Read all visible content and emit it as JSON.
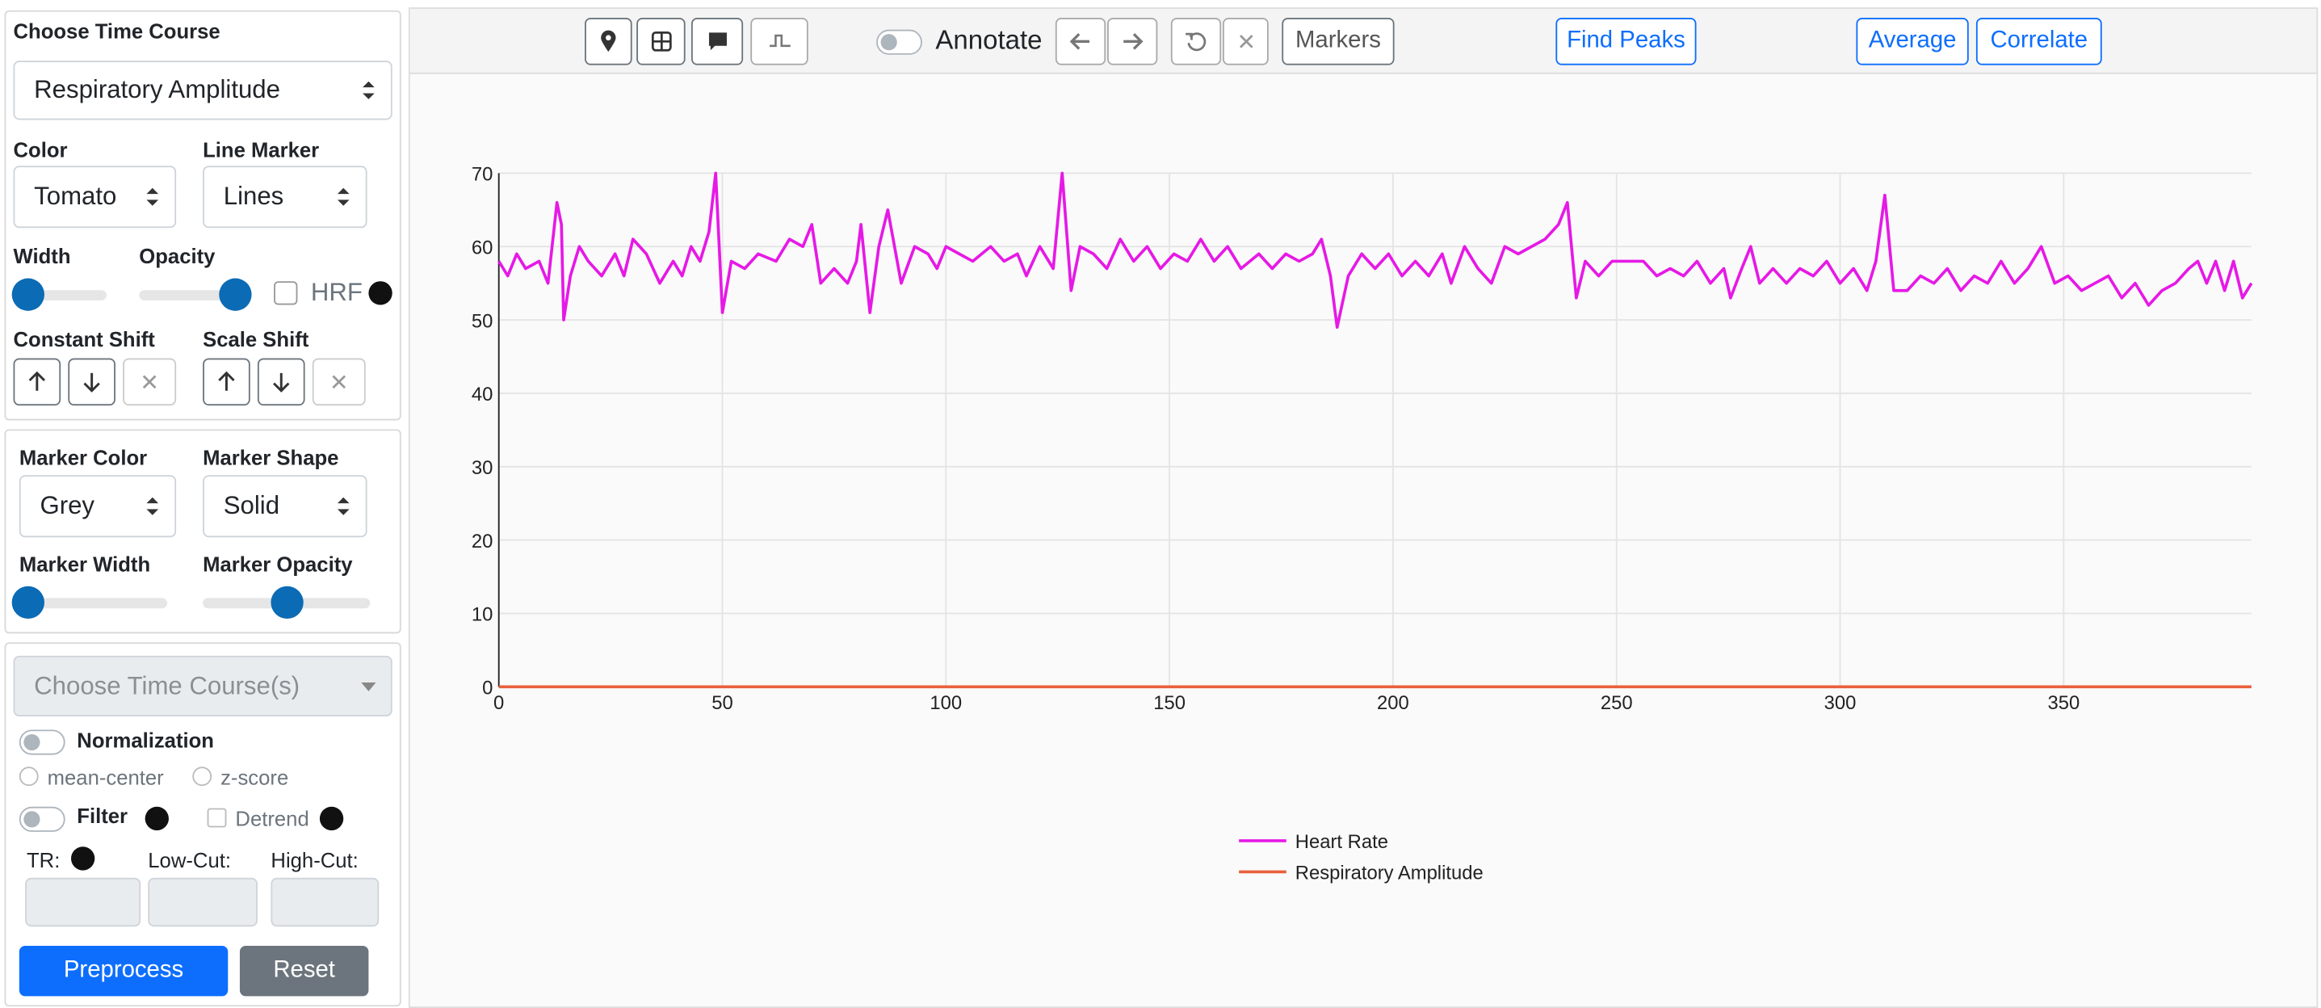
{
  "sidebar": {
    "time_course_label": "Choose Time Course",
    "time_course_value": "Respiratory Amplitude",
    "color_label": "Color",
    "color_value": "Tomato",
    "line_marker_label": "Line Marker",
    "line_marker_value": "Lines",
    "width_label": "Width",
    "opacity_label": "Opacity",
    "hrf_label": "HRF",
    "constant_shift_label": "Constant Shift",
    "scale_shift_label": "Scale Shift",
    "marker_color_label": "Marker Color",
    "marker_color_value": "Grey",
    "marker_shape_label": "Marker Shape",
    "marker_shape_value": "Solid",
    "marker_width_label": "Marker Width",
    "marker_opacity_label": "Marker Opacity",
    "multi_select_placeholder": "Choose Time Course(s)",
    "normalization_label": "Normalization",
    "mean_center_label": "mean-center",
    "zscore_label": "z-score",
    "filter_label": "Filter",
    "detrend_label": "Detrend",
    "tr_label": "TR:",
    "low_cut_label": "Low-Cut:",
    "high_cut_label": "High-Cut:",
    "preprocess_button": "Preprocess",
    "reset_button": "Reset"
  },
  "toolbar": {
    "annotate_label": "Annotate",
    "markers_button": "Markers",
    "find_peaks_button": "Find Peaks",
    "average_button": "Average",
    "correlate_button": "Correlate"
  },
  "chart_data": {
    "type": "line",
    "xlim": [
      0,
      392
    ],
    "ylim": [
      0,
      70
    ],
    "xticks": [
      0,
      50,
      100,
      150,
      200,
      250,
      300,
      350
    ],
    "yticks": [
      0,
      10,
      20,
      30,
      40,
      50,
      60,
      70
    ],
    "grid": true,
    "legend": "bottom",
    "series": [
      {
        "name": "Heart Rate",
        "color": "#e619e6",
        "x": [
          0,
          2,
          4,
          6,
          9,
          11,
          13,
          14,
          14.5,
          16,
          18,
          20,
          23,
          26,
          28,
          30,
          33,
          36,
          39,
          41,
          43,
          45,
          47,
          48.5,
          50,
          52,
          55,
          58,
          62,
          65,
          68,
          70,
          72,
          75,
          78,
          80,
          81,
          83,
          85,
          87,
          90,
          93,
          96,
          98,
          100,
          103,
          106,
          110,
          113,
          116,
          118,
          121,
          124,
          126,
          128,
          130,
          133,
          136,
          139,
          142,
          145,
          148,
          151,
          154,
          157,
          160,
          163,
          166,
          170,
          173,
          176,
          179,
          182,
          184,
          186,
          187.5,
          190,
          193,
          196,
          199,
          202,
          205,
          208,
          211,
          213,
          216,
          219,
          222,
          225,
          228,
          231,
          234,
          237,
          239,
          241,
          243,
          246,
          249,
          252,
          256,
          259,
          262,
          265,
          268,
          271,
          274,
          275.5,
          278,
          280,
          282,
          285,
          288,
          291,
          294,
          297,
          300,
          303,
          306,
          308,
          310,
          312,
          315,
          318,
          321,
          324,
          327,
          330,
          333,
          336,
          339,
          342,
          345,
          348,
          351,
          354,
          357,
          360,
          363,
          366,
          369,
          372,
          375,
          378,
          380,
          382,
          384,
          386,
          388,
          390,
          392
        ],
        "values": [
          58,
          56,
          59,
          57,
          58,
          55,
          66,
          63,
          50,
          56,
          60,
          58,
          56,
          59,
          56,
          61,
          59,
          55,
          58,
          56,
          60,
          58,
          62,
          70,
          51,
          58,
          57,
          59,
          58,
          61,
          60,
          63,
          55,
          57,
          55,
          58,
          63,
          51,
          60,
          65,
          55,
          60,
          59,
          57,
          60,
          59,
          58,
          60,
          58,
          59,
          56,
          60,
          57,
          70,
          54,
          60,
          59,
          57,
          61,
          58,
          60,
          57,
          59,
          58,
          61,
          58,
          60,
          57,
          59,
          57,
          59,
          58,
          59,
          61,
          56,
          49,
          56,
          59,
          57,
          59,
          56,
          58,
          56,
          59,
          55,
          60,
          57,
          55,
          60,
          59,
          60,
          61,
          63,
          66,
          53,
          58,
          56,
          58,
          58,
          58,
          56,
          57,
          56,
          58,
          55,
          57,
          53,
          57,
          60,
          55,
          57,
          55,
          57,
          56,
          58,
          55,
          57,
          54,
          58,
          67,
          54,
          54,
          56,
          55,
          57,
          54,
          56,
          55,
          58,
          55,
          57,
          60,
          55,
          56,
          54,
          55,
          56,
          53,
          55,
          52,
          54,
          55,
          57,
          58,
          55,
          58,
          54,
          58,
          53,
          55
        ]
      },
      {
        "name": "Respiratory Amplitude",
        "color": "#e8603c",
        "x": [
          0,
          392
        ],
        "values": [
          0,
          0
        ]
      }
    ]
  }
}
